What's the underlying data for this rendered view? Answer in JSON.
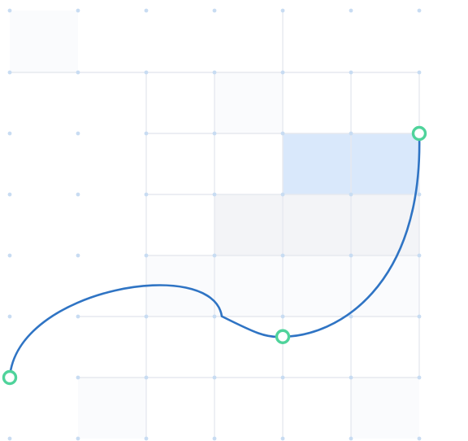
{
  "colors": {
    "background": "#ffffff",
    "grid_line": "#e6e9ef",
    "grid_dot": "#c8dcf2",
    "cell_faint": "#fafbfd",
    "cell_light": "#f3f4f7",
    "cell_blue": "#d9e8fb",
    "curve": "#2f74c4",
    "handle_ring": "#4fd39b",
    "handle_fill": "#ffffff"
  },
  "icons": {
    "handle": "circle-ring-icon"
  },
  "grid": {
    "columns": 7,
    "rows": 7,
    "col_x": [
      12,
      96,
      180,
      264,
      348,
      432,
      516
    ],
    "row_y": [
      13,
      89,
      164,
      239,
      314,
      389,
      464,
      539
    ]
  },
  "cells": [
    {
      "col": 0,
      "row": 0,
      "tone": "faint"
    },
    {
      "col": 3,
      "row": 1,
      "tone": "faint"
    },
    {
      "col": 4,
      "row": 2,
      "tone": "blue"
    },
    {
      "col": 5,
      "row": 2,
      "tone": "blue"
    },
    {
      "col": 3,
      "row": 3,
      "tone": "light"
    },
    {
      "col": 4,
      "row": 3,
      "tone": "light"
    },
    {
      "col": 5,
      "row": 3,
      "tone": "light"
    },
    {
      "col": 2,
      "row": 4,
      "tone": "faint"
    },
    {
      "col": 3,
      "row": 4,
      "tone": "faint"
    },
    {
      "col": 4,
      "row": 4,
      "tone": "faint"
    },
    {
      "col": 5,
      "row": 4,
      "tone": "faint"
    },
    {
      "col": 1,
      "row": 6,
      "tone": "faint"
    },
    {
      "col": 5,
      "row": 6,
      "tone": "faint"
    }
  ],
  "grid_lines": {
    "horizontal": [
      {
        "row": 1,
        "from_col": 0,
        "to_col": 6
      },
      {
        "row": 2,
        "from_col": 2,
        "to_col": 6
      },
      {
        "row": 3,
        "from_col": 2,
        "to_col": 6
      },
      {
        "row": 4,
        "from_col": 2,
        "to_col": 6
      },
      {
        "row": 5,
        "from_col": 1,
        "to_col": 6
      },
      {
        "row": 6,
        "from_col": 1,
        "to_col": 6
      }
    ],
    "vertical": [
      {
        "col": 2,
        "from_row": 1,
        "to_row": 7
      },
      {
        "col": 3,
        "from_row": 1,
        "to_row": 7
      },
      {
        "col": 4,
        "from_row": 0,
        "to_row": 7
      },
      {
        "col": 5,
        "from_row": 1,
        "to_row": 7
      },
      {
        "col": 6,
        "from_row": 1,
        "to_row": 6
      }
    ]
  },
  "curve": {
    "points": [
      {
        "name": "start",
        "col": 0,
        "row": 6
      },
      {
        "name": "middle",
        "col": 4,
        "row": 5.33
      },
      {
        "name": "end",
        "col": 6,
        "row": 2
      }
    ]
  }
}
